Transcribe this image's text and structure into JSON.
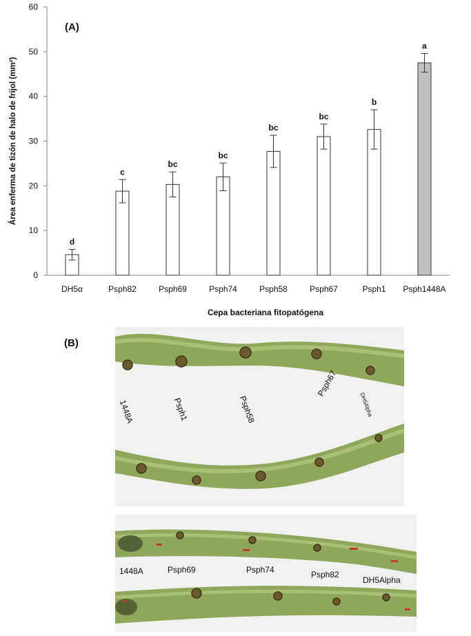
{
  "panel_a_label": "(A)",
  "panel_b_label": "(B)",
  "chart_data": {
    "type": "bar",
    "title": "",
    "ylabel": "Área enferma de tizón de halo de frijol  (mm²)",
    "xlabel": "Cepa bacteriana fitopatógena",
    "ylim": [
      0,
      60
    ],
    "yticks": [
      0,
      10,
      20,
      30,
      40,
      50,
      60
    ],
    "categories": [
      "DH5α",
      "Psph82",
      "Psph69",
      "Psph74",
      "Psph58",
      "Psph67",
      "Psph1",
      "Psph1448A"
    ],
    "values": [
      4.6,
      18.8,
      20.3,
      22.0,
      27.7,
      31.0,
      32.6,
      47.5
    ],
    "error": [
      1.2,
      2.6,
      2.8,
      3.1,
      3.6,
      2.8,
      4.4,
      2.1
    ],
    "significance_letters": [
      "d",
      "c",
      "bc",
      "bc",
      "bc",
      "bc",
      "b",
      "a"
    ],
    "bar_colors": [
      "#ffffff",
      "#ffffff",
      "#ffffff",
      "#ffffff",
      "#ffffff",
      "#ffffff",
      "#ffffff",
      "#c0c0c0"
    ],
    "grid": false
  },
  "photo_top": {
    "labels": [
      "1448A",
      "Psph1",
      "Psph58",
      "Psph67",
      "DH5Alpha"
    ]
  },
  "photo_bottom": {
    "labels": [
      "1448A",
      "Psph69",
      "Psph74",
      "Psph82",
      "DH5Alpha"
    ]
  }
}
